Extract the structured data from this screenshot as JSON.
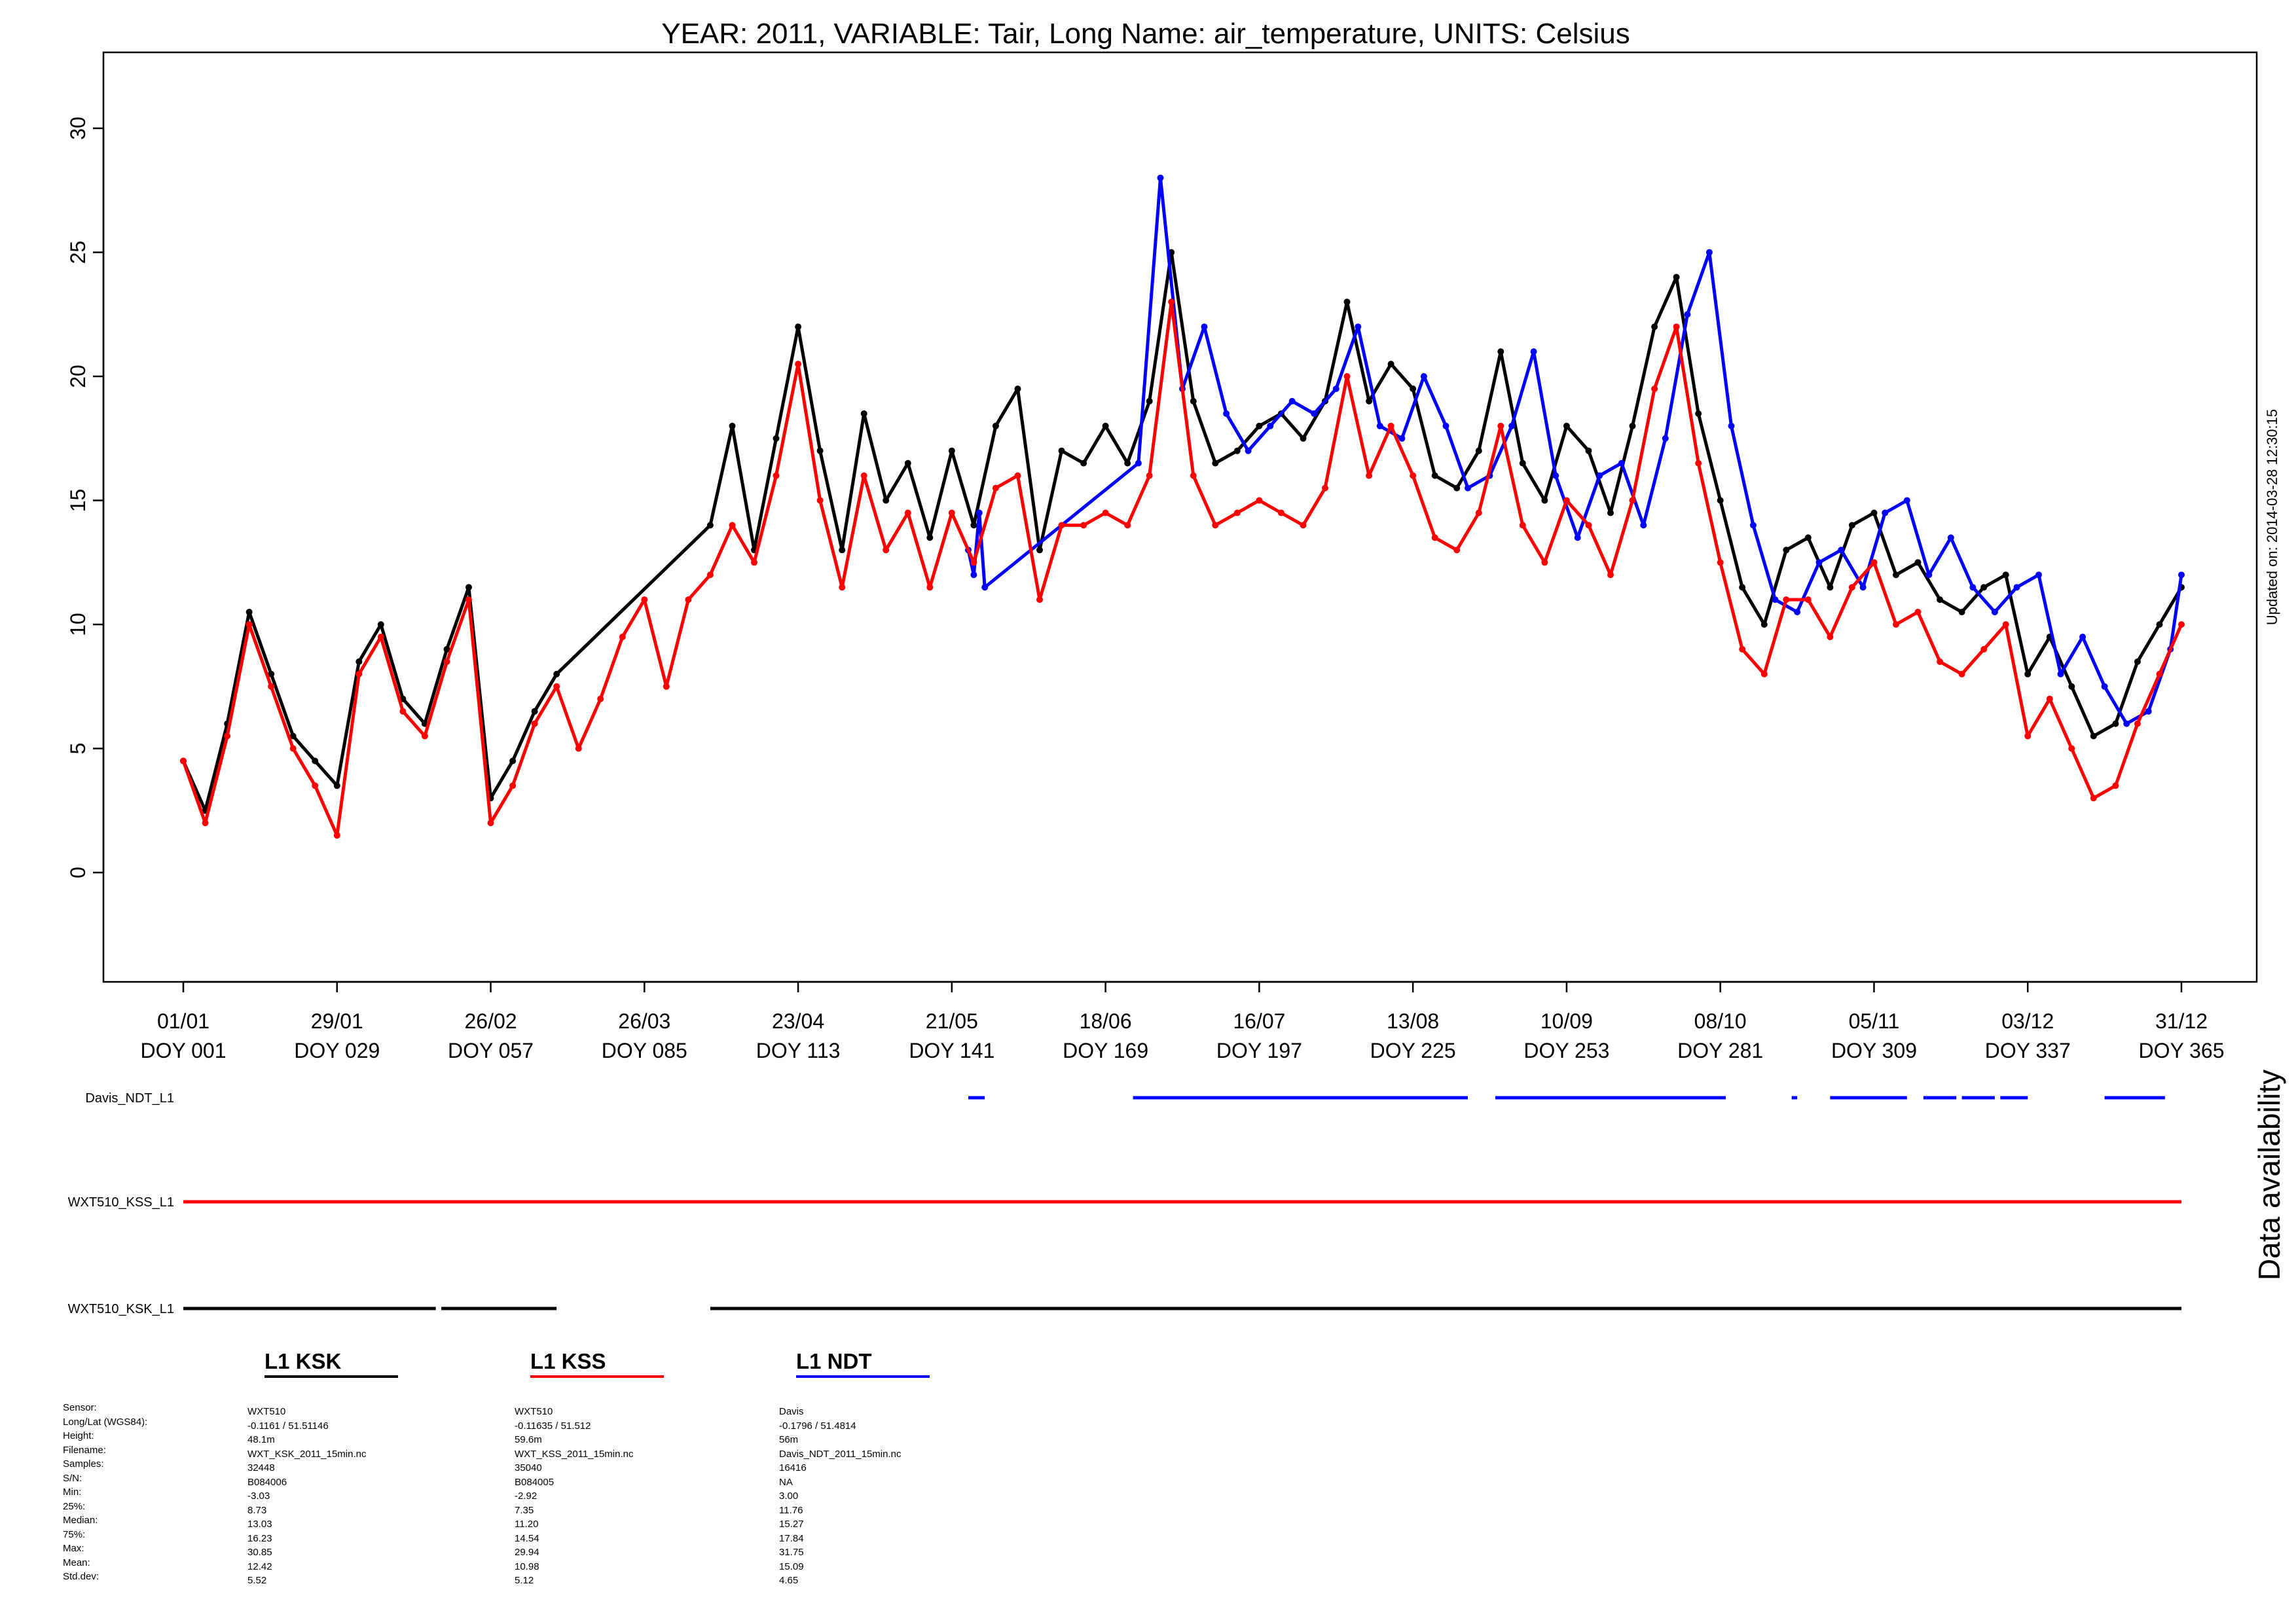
{
  "title": "YEAR: 2011, VARIABLE: Tair, Long Name: air_temperature, UNITS: Celsius",
  "updated_on": "Updated on: 2014-03-28 12:30:15",
  "availability_label": "Data availability",
  "chart_data": {
    "type": "scatter",
    "title": "YEAR: 2011, VARIABLE: Tair, Long Name: air_temperature, UNITS: Celsius",
    "xlabel": "",
    "ylabel": "",
    "xlim": [
      1,
      365
    ],
    "ylim": [
      -4,
      33
    ],
    "y_ticks": [
      0,
      5,
      10,
      15,
      20,
      25,
      30
    ],
    "x_ticks": [
      {
        "doy": 1,
        "date": "01/01",
        "label": "DOY 001"
      },
      {
        "doy": 29,
        "date": "29/01",
        "label": "DOY 029"
      },
      {
        "doy": 57,
        "date": "26/02",
        "label": "DOY 057"
      },
      {
        "doy": 85,
        "date": "26/03",
        "label": "DOY 085"
      },
      {
        "doy": 113,
        "date": "23/04",
        "label": "DOY 113"
      },
      {
        "doy": 141,
        "date": "21/05",
        "label": "DOY 141"
      },
      {
        "doy": 169,
        "date": "18/06",
        "label": "DOY 169"
      },
      {
        "doy": 197,
        "date": "16/07",
        "label": "DOY 197"
      },
      {
        "doy": 225,
        "date": "13/08",
        "label": "DOY 225"
      },
      {
        "doy": 253,
        "date": "10/09",
        "label": "DOY 253"
      },
      {
        "doy": 281,
        "date": "08/10",
        "label": "DOY 281"
      },
      {
        "doy": 309,
        "date": "05/11",
        "label": "DOY 309"
      },
      {
        "doy": 337,
        "date": "03/12",
        "label": "DOY 337"
      },
      {
        "doy": 365,
        "date": "31/12",
        "label": "DOY 365"
      }
    ],
    "grid": false,
    "series": [
      {
        "name": "L1 KSK",
        "color": "#000000",
        "x": [
          1,
          5,
          9,
          13,
          17,
          21,
          25,
          29,
          33,
          37,
          41,
          45,
          49,
          53,
          57,
          61,
          65,
          69,
          97,
          101,
          105,
          109,
          113,
          117,
          121,
          125,
          129,
          133,
          137,
          141,
          145,
          149,
          153,
          157,
          161,
          165,
          169,
          173,
          177,
          181,
          185,
          189,
          193,
          197,
          201,
          205,
          209,
          213,
          217,
          221,
          225,
          229,
          233,
          237,
          241,
          245,
          249,
          253,
          257,
          261,
          265,
          269,
          273,
          277,
          281,
          285,
          289,
          293,
          297,
          301,
          305,
          309,
          313,
          317,
          321,
          325,
          329,
          333,
          337,
          341,
          345,
          349,
          353,
          357,
          361,
          365
        ],
        "y": [
          4.5,
          2.5,
          6.0,
          10.5,
          8.0,
          5.5,
          4.5,
          3.5,
          8.5,
          10.0,
          7.0,
          6.0,
          9.0,
          11.5,
          3.0,
          4.5,
          6.5,
          8.0,
          14.0,
          18.0,
          13.0,
          17.5,
          22.0,
          17.0,
          13.0,
          18.5,
          15.0,
          16.5,
          13.5,
          17.0,
          14.0,
          18.0,
          19.5,
          13.0,
          17.0,
          16.5,
          18.0,
          16.5,
          19.0,
          25.0,
          19.0,
          16.5,
          17.0,
          18.0,
          18.5,
          17.5,
          19.0,
          23.0,
          19.0,
          20.5,
          19.5,
          16.0,
          15.5,
          17.0,
          21.0,
          16.5,
          15.0,
          18.0,
          17.0,
          14.5,
          18.0,
          22.0,
          24.0,
          18.5,
          15.0,
          11.5,
          10.0,
          13.0,
          13.5,
          11.5,
          14.0,
          14.5,
          12.0,
          12.5,
          11.0,
          10.5,
          11.5,
          12.0,
          8.0,
          9.5,
          7.5,
          5.5,
          6.0,
          8.5,
          10.0,
          11.5
        ]
      },
      {
        "name": "L1 KSS",
        "color": "#ff0000",
        "x": [
          1,
          5,
          9,
          13,
          17,
          21,
          25,
          29,
          33,
          37,
          41,
          45,
          49,
          53,
          57,
          61,
          65,
          69,
          73,
          77,
          81,
          85,
          89,
          93,
          97,
          101,
          105,
          109,
          113,
          117,
          121,
          125,
          129,
          133,
          137,
          141,
          145,
          149,
          153,
          157,
          161,
          165,
          169,
          173,
          177,
          181,
          185,
          189,
          193,
          197,
          201,
          205,
          209,
          213,
          217,
          221,
          225,
          229,
          233,
          237,
          241,
          245,
          249,
          253,
          257,
          261,
          265,
          269,
          273,
          277,
          281,
          285,
          289,
          293,
          297,
          301,
          305,
          309,
          313,
          317,
          321,
          325,
          329,
          333,
          337,
          341,
          345,
          349,
          353,
          357,
          361,
          365
        ],
        "y": [
          4.5,
          2.0,
          5.5,
          10.0,
          7.5,
          5.0,
          3.5,
          1.5,
          8.0,
          9.5,
          6.5,
          5.5,
          8.5,
          11.0,
          2.0,
          3.5,
          6.0,
          7.5,
          5.0,
          7.0,
          9.5,
          11.0,
          7.5,
          11.0,
          12.0,
          14.0,
          12.5,
          16.0,
          20.5,
          15.0,
          11.5,
          16.0,
          13.0,
          14.5,
          11.5,
          14.5,
          12.5,
          15.5,
          16.0,
          11.0,
          14.0,
          14.0,
          14.5,
          14.0,
          16.0,
          23.0,
          16.0,
          14.0,
          14.5,
          15.0,
          14.5,
          14.0,
          15.5,
          20.0,
          16.0,
          18.0,
          16.0,
          13.5,
          13.0,
          14.5,
          18.0,
          14.0,
          12.5,
          15.0,
          14.0,
          12.0,
          15.0,
          19.5,
          22.0,
          16.5,
          12.5,
          9.0,
          8.0,
          11.0,
          11.0,
          9.5,
          11.5,
          12.5,
          10.0,
          10.5,
          8.5,
          8.0,
          9.0,
          10.0,
          5.5,
          7.0,
          5.0,
          3.0,
          3.5,
          6.0,
          8.0,
          10.0
        ]
      },
      {
        "name": "L1 NDT",
        "color": "#0000ff",
        "x": [
          144,
          145,
          146,
          147,
          175,
          179,
          183,
          187,
          191,
          195,
          199,
          203,
          207,
          211,
          215,
          219,
          223,
          227,
          231,
          235,
          239,
          243,
          247,
          251,
          255,
          259,
          263,
          267,
          271,
          275,
          279,
          283,
          287,
          291,
          295,
          299,
          303,
          307,
          311,
          315,
          319,
          323,
          327,
          331,
          335,
          339,
          343,
          347,
          351,
          355,
          359,
          363,
          365
        ],
        "y": [
          13.0,
          12.0,
          14.5,
          11.5,
          16.5,
          28.0,
          19.5,
          22.0,
          18.5,
          17.0,
          18.0,
          19.0,
          18.5,
          19.5,
          22.0,
          18.0,
          17.5,
          20.0,
          18.0,
          15.5,
          16.0,
          18.0,
          21.0,
          16.0,
          13.5,
          16.0,
          16.5,
          14.0,
          17.5,
          22.5,
          25.0,
          18.0,
          14.0,
          11.0,
          10.5,
          12.5,
          13.0,
          11.5,
          14.5,
          15.0,
          12.0,
          13.5,
          11.5,
          10.5,
          11.5,
          12.0,
          8.0,
          9.5,
          7.5,
          6.0,
          6.5,
          9.0,
          12.0
        ]
      }
    ],
    "availability": [
      {
        "name": "Davis_NDT_L1",
        "color": "#0000ff",
        "segments": [
          [
            144,
            147
          ],
          [
            174,
            235
          ],
          [
            240,
            282
          ],
          [
            294,
            295
          ],
          [
            301,
            315
          ],
          [
            318,
            324
          ],
          [
            325,
            331
          ],
          [
            332,
            337
          ],
          [
            351,
            362
          ]
        ]
      },
      {
        "name": "WXT510_KSS_L1",
        "color": "#ff0000",
        "segments": [
          [
            1,
            365
          ]
        ]
      },
      {
        "name": "WXT510_KSK_L1",
        "color": "#000000",
        "segments": [
          [
            1,
            47
          ],
          [
            48,
            69
          ],
          [
            97,
            365
          ]
        ]
      }
    ]
  },
  "legend": [
    {
      "label": "L1 KSK",
      "color": "#000000"
    },
    {
      "label": "L1 KSS",
      "color": "#ff0000"
    },
    {
      "label": "L1 NDT",
      "color": "#0000ff"
    }
  ],
  "stats": {
    "labels": [
      "Sensor:",
      "Long/Lat (WGS84):",
      "Height:",
      "Filename:",
      "Samples:",
      "S/N:",
      "Min:",
      "25%:",
      "Median:",
      "75%:",
      "Max:",
      "Mean:",
      "Std.dev:"
    ],
    "ksk": [
      "WXT510",
      "-0.1161 / 51.51146",
      "48.1m",
      "WXT_KSK_2011_15min.nc",
      "32448",
      "B084006",
      "-3.03",
      "8.73",
      "13.03",
      "16.23",
      "30.85",
      "12.42",
      "5.52"
    ],
    "kss": [
      "WXT510",
      "-0.11635 / 51.512",
      "59.6m",
      "WXT_KSS_2011_15min.nc",
      "35040",
      "B084005",
      "-2.92",
      "7.35",
      "11.20",
      "14.54",
      "29.94",
      "10.98",
      "5.12"
    ],
    "ndt": [
      "Davis",
      "-0.1796 / 51.4814",
      "56m",
      "Davis_NDT_2011_15min.nc",
      "16416",
      "NA",
      "3.00",
      "11.76",
      "15.27",
      "17.84",
      "31.75",
      "15.09",
      "4.65"
    ]
  }
}
